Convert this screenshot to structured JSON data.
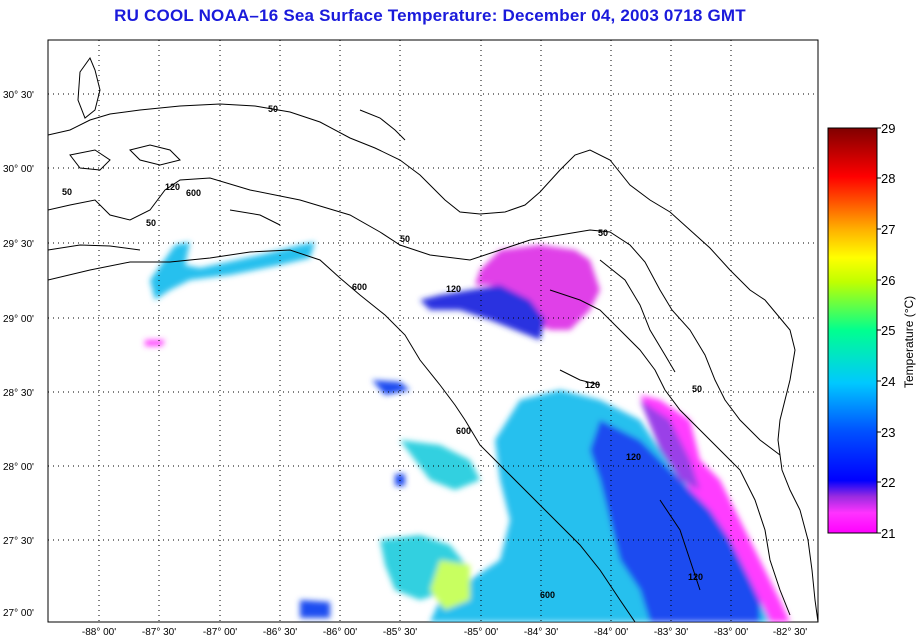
{
  "title": "RU COOL  NOAA–16  Sea Surface Temperature:  December 04, 2003 0718 GMT",
  "map": {
    "lon_labels": [
      "-88° 00'",
      "-87° 30'",
      "-87° 00'",
      "-86° 30'",
      "-86° 00'",
      "-85° 30'",
      "-85° 00'",
      "-84° 30'",
      "-84° 00'",
      "-83° 30'",
      "-83° 00'",
      "-82° 30'"
    ],
    "lat_labels": [
      "30° 30'",
      "30° 00'",
      "29° 30'",
      "29° 00'",
      "28° 30'",
      "28° 00'",
      "27° 30'",
      "27° 00'"
    ],
    "contour_labels": [
      "50",
      "50",
      "50",
      "120",
      "600",
      "50",
      "600",
      "120",
      "50",
      "600",
      "120",
      "120",
      "120",
      "600",
      "50"
    ],
    "grid": true
  },
  "colorbar": {
    "title": "Temperature (°C)",
    "ticks": [
      "29",
      "28",
      "27",
      "26",
      "25",
      "24",
      "23",
      "22",
      "21"
    ],
    "range": [
      21,
      29
    ],
    "colors": [
      "#ff00ff",
      "#0000ff",
      "#00c8ff",
      "#00ff80",
      "#ffff00",
      "#ff8000",
      "#ff0000",
      "#800000"
    ]
  }
}
